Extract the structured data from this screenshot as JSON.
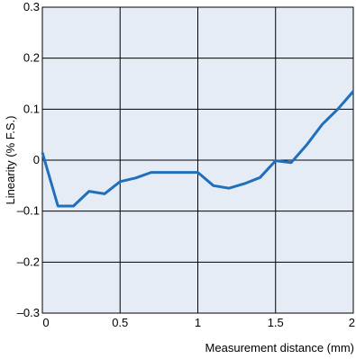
{
  "chart_data": {
    "type": "line",
    "title": "",
    "xlabel": "Measurement distance (mm)",
    "ylabel": "Linearity (% F.S.)",
    "xlim": [
      0,
      2
    ],
    "ylim": [
      -0.3,
      0.3
    ],
    "grid": true,
    "x_ticks": [
      {
        "value": 0,
        "label": "0"
      },
      {
        "value": 0.5,
        "label": "0.5"
      },
      {
        "value": 1,
        "label": "1"
      },
      {
        "value": 1.5,
        "label": "1.5"
      },
      {
        "value": 2,
        "label": "2"
      }
    ],
    "y_ticks": [
      {
        "value": 0.3,
        "label": "0.3"
      },
      {
        "value": 0.2,
        "label": "0.2"
      },
      {
        "value": 0.1,
        "label": "0.1"
      },
      {
        "value": 0,
        "label": "0"
      },
      {
        "value": -0.1,
        "label": "–0.1"
      },
      {
        "value": -0.2,
        "label": "–0.2"
      },
      {
        "value": -0.3,
        "label": "–0.3"
      }
    ],
    "series": [
      {
        "color": "#1f6fba",
        "x": [
          0,
          0.1,
          0.2,
          0.3,
          0.4,
          0.5,
          0.6,
          0.7,
          0.8,
          0.9,
          1.0,
          1.1,
          1.2,
          1.3,
          1.4,
          1.5,
          1.6,
          1.7,
          1.8,
          1.9,
          2.0
        ],
        "y": [
          0.015,
          -0.09,
          -0.09,
          -0.061,
          -0.066,
          -0.042,
          -0.035,
          -0.024,
          -0.024,
          -0.024,
          -0.024,
          -0.05,
          -0.055,
          -0.046,
          -0.034,
          -0.001,
          -0.005,
          0.03,
          0.07,
          0.1,
          0.135
        ]
      }
    ],
    "plot_background": "#e6ecf6",
    "grid_color": "#000000"
  }
}
